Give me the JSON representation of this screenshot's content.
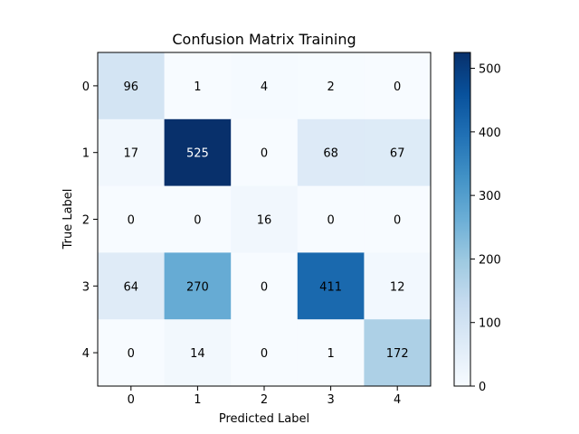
{
  "chart_data": {
    "type": "heatmap",
    "title": "Confusion Matrix Training",
    "xlabel": "Predicted Label",
    "ylabel": "True Label",
    "x_tick_labels": [
      "0",
      "1",
      "2",
      "3",
      "4"
    ],
    "y_tick_labels": [
      "0",
      "1",
      "2",
      "3",
      "4"
    ],
    "matrix": [
      [
        96,
        1,
        4,
        2,
        0
      ],
      [
        17,
        525,
        0,
        68,
        67
      ],
      [
        0,
        0,
        16,
        0,
        0
      ],
      [
        64,
        270,
        0,
        411,
        12
      ],
      [
        0,
        14,
        0,
        1,
        172
      ]
    ],
    "colormap": "Blues",
    "colorbar_ticks": [
      "0",
      "100",
      "200",
      "300",
      "400",
      "500"
    ],
    "colorbar_range": [
      0,
      525
    ],
    "grid": false
  }
}
